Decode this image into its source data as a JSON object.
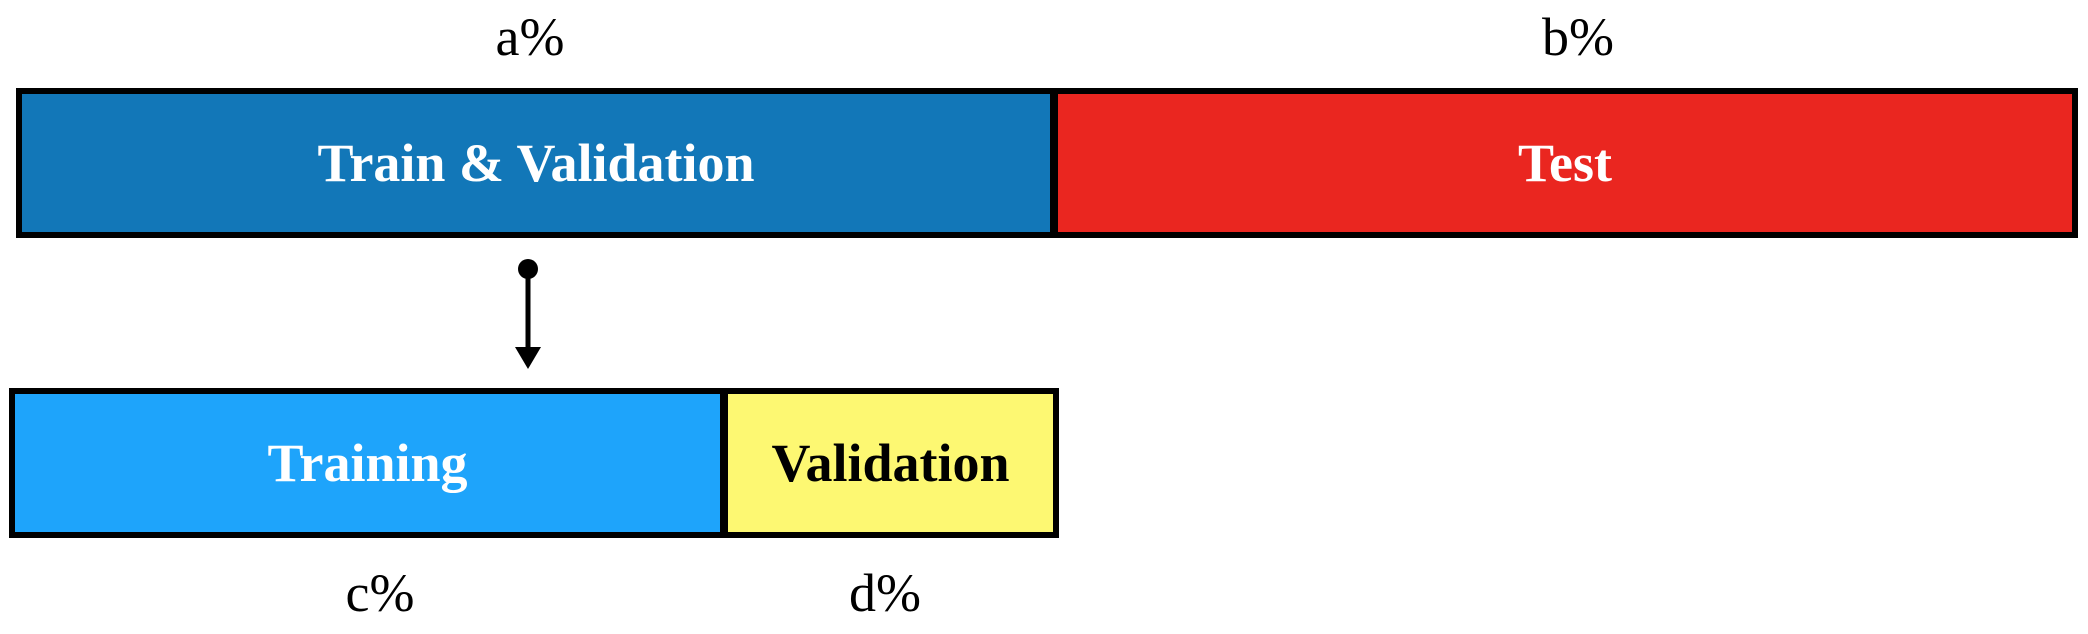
{
  "top_split": {
    "train_val": {
      "label": "Train & Validation",
      "percent_label": "a%",
      "color": "#1277B8"
    },
    "test": {
      "label": "Test",
      "percent_label": "b%",
      "color": "#EA2620"
    }
  },
  "bottom_split": {
    "training": {
      "label": "Training",
      "percent_label": "c%",
      "color": "#1EA4FB"
    },
    "validation": {
      "label": "Validation",
      "percent_label": "d%",
      "color": "#FDF872"
    }
  },
  "connector": {
    "icon": "arrow-down-icon"
  }
}
